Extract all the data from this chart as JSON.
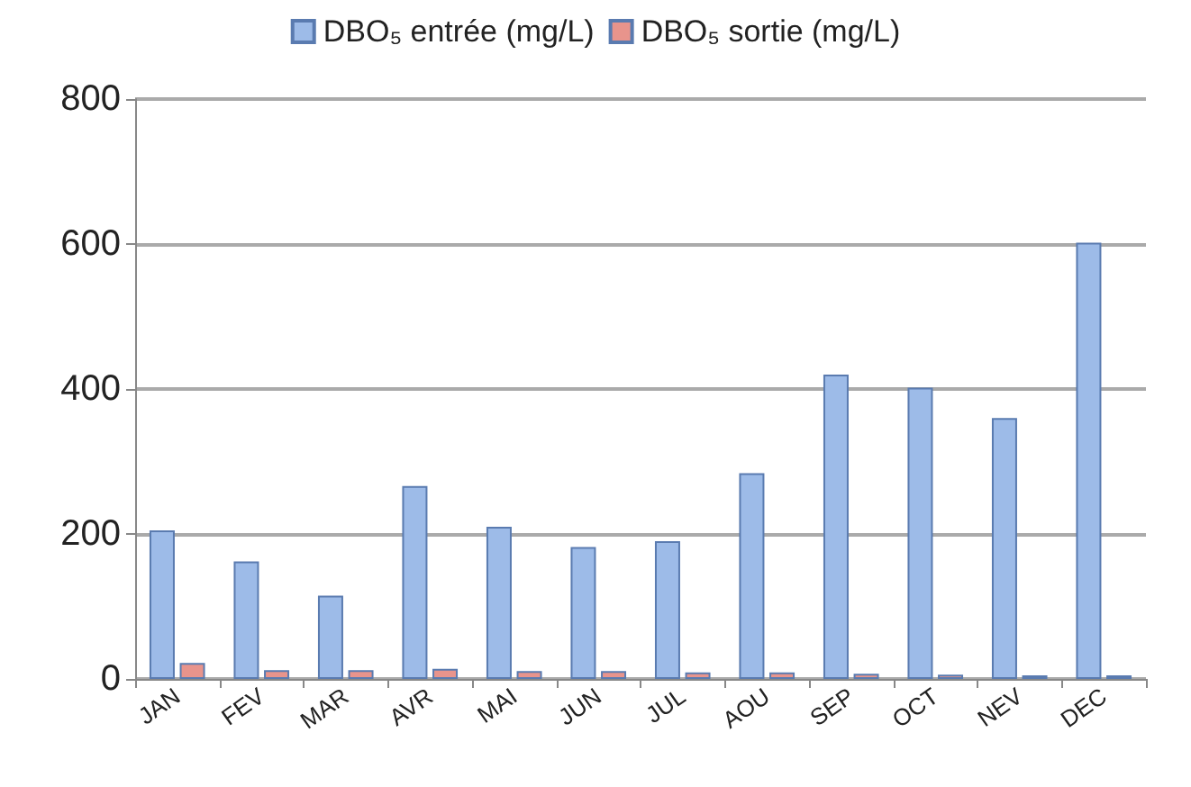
{
  "chart_data": {
    "type": "bar",
    "categories": [
      "JAN",
      "FEV",
      "MAR",
      "AVR",
      "MAI",
      "JUN",
      "JUL",
      "AOU",
      "SEP",
      "OCT",
      "NEV",
      "DEC"
    ],
    "series": [
      {
        "name": "DBO₅ entrée (mg/L)",
        "color": "#9dbbe8",
        "values": [
          205,
          162,
          115,
          266,
          210,
          182,
          190,
          284,
          420,
          402,
          360,
          602
        ]
      },
      {
        "name": "DBO₅ sortie (mg/L)",
        "color": "#e8948c",
        "values": [
          22,
          12,
          12,
          14,
          11,
          11,
          9,
          9,
          7,
          6,
          5,
          5
        ]
      }
    ],
    "ylim": [
      0,
      800
    ],
    "yticks": [
      0,
      200,
      400,
      600,
      800
    ],
    "grid": "y",
    "legend": "top"
  }
}
